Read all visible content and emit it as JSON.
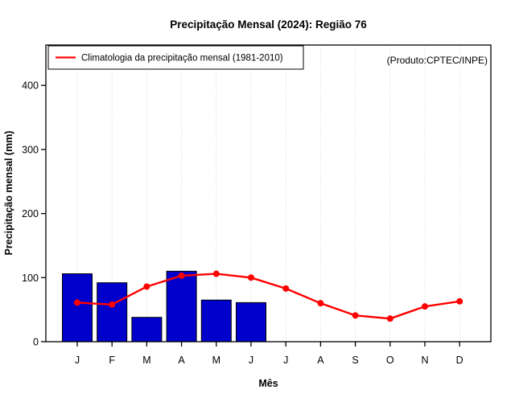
{
  "chart_data": {
    "type": "bar",
    "title": "Precipitação Mensal (2024): Região 76",
    "xlabel": "Mês",
    "ylabel": "Precipitação mensal (mm)",
    "annotation": "(Produto:CPTEC/INPE)",
    "categories": [
      "J",
      "F",
      "M",
      "A",
      "M",
      "J",
      "J",
      "A",
      "S",
      "O",
      "N",
      "D"
    ],
    "series": [
      {
        "name": "",
        "type": "bar",
        "values": [
          106,
          92,
          38,
          110,
          65,
          61,
          null,
          null,
          null,
          null,
          null,
          null
        ]
      },
      {
        "name": "Climatologia da precipitação mensal (1981-2010)",
        "type": "line",
        "values": [
          61,
          58,
          86,
          103,
          106,
          100,
          83,
          60,
          41,
          36,
          55,
          63
        ]
      }
    ],
    "yticks": [
      0,
      100,
      200,
      300,
      400
    ],
    "ylim": [
      0,
      463
    ],
    "grid": "vertical-dotted",
    "legend_position": "top-left",
    "colors": {
      "bar": "#0000cc",
      "bar_border": "#000000",
      "line": "#ff0000",
      "grid": "#d9d9d9",
      "annotation": "#7a7a7a",
      "axis": "#000000"
    }
  }
}
